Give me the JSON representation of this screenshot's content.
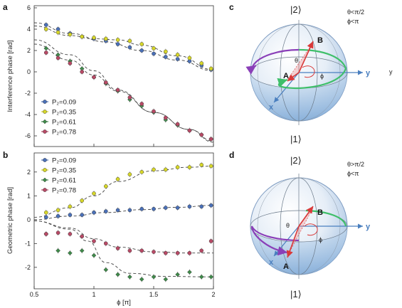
{
  "panels": {
    "a": "a",
    "b": "b",
    "c": "c",
    "d": "d"
  },
  "colors": {
    "s1": "#4a70b8",
    "s2": "#d6d62a",
    "s3": "#3f8a4a",
    "s4": "#b84a66",
    "dash": "#444444",
    "purple": "#8a3fb8",
    "green": "#3fbf6a",
    "red": "#d93a3a",
    "axis_blue": "#4a7fbf"
  },
  "chart_data": [
    {
      "type": "scatter",
      "id": "a",
      "xlabel": "",
      "ylabel": "Interference phase [rad]",
      "xlim": [
        0.5,
        2.0
      ],
      "ylim": [
        -7,
        6.2
      ],
      "xticks": [
        0.5,
        1,
        1.5,
        2
      ],
      "xticklabels": [
        "0.5",
        "1",
        "1.5",
        "2"
      ],
      "yticks": [
        6,
        4,
        2,
        0,
        -2,
        -4,
        -6
      ],
      "yticklabels": [
        "6",
        "4",
        "2",
        "0",
        "-2",
        "-4",
        "-6"
      ],
      "legend": "lower-left",
      "grid": false,
      "series": [
        {
          "name": "P₂=0.09",
          "color_key": "s1",
          "x": [
            0.6,
            0.7,
            0.8,
            0.9,
            1.0,
            1.1,
            1.2,
            1.3,
            1.4,
            1.5,
            1.6,
            1.7,
            1.8,
            1.9,
            1.98
          ],
          "y": [
            4.4,
            4.0,
            3.6,
            3.3,
            3.1,
            2.9,
            2.6,
            2.3,
            2.0,
            1.7,
            1.4,
            1.2,
            1.0,
            0.6,
            0.2
          ],
          "fit": [
            [
              0.5,
              4.6
            ],
            [
              0.8,
              3.6
            ],
            [
              1.1,
              2.8
            ],
            [
              1.4,
              2.0
            ],
            [
              1.7,
              1.1
            ],
            [
              2.0,
              0.1
            ]
          ]
        },
        {
          "name": "P₂=0.35",
          "color_key": "s2",
          "x": [
            0.6,
            0.7,
            0.8,
            0.9,
            1.0,
            1.1,
            1.2,
            1.3,
            1.4,
            1.5,
            1.6,
            1.7,
            1.8,
            1.9,
            1.98
          ],
          "y": [
            4.0,
            3.7,
            3.5,
            3.3,
            3.2,
            3.1,
            3.0,
            2.9,
            2.6,
            2.2,
            1.9,
            1.6,
            1.3,
            0.8,
            0.3
          ],
          "fit": [
            [
              0.5,
              4.3
            ],
            [
              0.8,
              3.4
            ],
            [
              1.0,
              3.1
            ],
            [
              1.2,
              3.0
            ],
            [
              1.4,
              2.5
            ],
            [
              1.7,
              1.5
            ],
            [
              2.0,
              0.2
            ]
          ]
        },
        {
          "name": "P₂=0.61",
          "color_key": "s3",
          "x": [
            0.6,
            0.7,
            0.8,
            0.9,
            1.0,
            1.1,
            1.2,
            1.3,
            1.4,
            1.5,
            1.6,
            1.7,
            1.8,
            1.9,
            1.98
          ],
          "y": [
            2.2,
            1.6,
            1.0,
            0.3,
            -0.5,
            -1.1,
            -1.8,
            -2.6,
            -3.2,
            -3.8,
            -4.5,
            -5.0,
            -5.5,
            -5.9,
            -6.3
          ],
          "fit": [
            [
              0.5,
              3.0
            ],
            [
              0.8,
              1.6
            ],
            [
              1.0,
              0.1
            ],
            [
              1.2,
              -1.7
            ],
            [
              1.5,
              -3.8
            ],
            [
              1.8,
              -5.4
            ],
            [
              2.0,
              -6.5
            ]
          ]
        },
        {
          "name": "P₂=0.78",
          "color_key": "s4",
          "x": [
            0.6,
            0.7,
            0.8,
            0.9,
            1.0,
            1.1,
            1.2,
            1.3,
            1.4,
            1.5,
            1.6,
            1.7,
            1.8,
            1.9,
            1.98
          ],
          "y": [
            1.8,
            1.3,
            0.8,
            0.0,
            -0.5,
            -1.0,
            -1.7,
            -2.4,
            -3.0,
            -3.7,
            -4.3,
            -4.9,
            -5.5,
            -5.9,
            -6.3
          ],
          "fit": [
            [
              0.5,
              2.6
            ],
            [
              0.8,
              1.1
            ],
            [
              1.0,
              -0.3
            ],
            [
              1.2,
              -1.8
            ],
            [
              1.5,
              -3.8
            ],
            [
              1.8,
              -5.4
            ],
            [
              2.0,
              -6.6
            ]
          ]
        }
      ]
    },
    {
      "type": "scatter",
      "id": "b",
      "xlabel": "ϕ [π]",
      "ylabel": "Geometric phase [rad]",
      "xlim": [
        0.5,
        2.0
      ],
      "ylim": [
        -2.9,
        2.8
      ],
      "xticks": [
        0.5,
        1,
        1.5,
        2
      ],
      "xticklabels": [
        "0.5",
        "1",
        "1.5",
        "2"
      ],
      "yticks": [
        2,
        1,
        0,
        -1,
        -2
      ],
      "yticklabels": [
        "2",
        "1",
        "0",
        "-1",
        "-2"
      ],
      "legend": "upper-left",
      "grid": false,
      "series": [
        {
          "name": "P₂=0.09",
          "color_key": "s1",
          "x": [
            0.6,
            0.7,
            0.8,
            0.9,
            1.0,
            1.1,
            1.2,
            1.3,
            1.4,
            1.5,
            1.6,
            1.7,
            1.8,
            1.9,
            1.98
          ],
          "y": [
            0.1,
            0.15,
            0.2,
            0.2,
            0.3,
            0.35,
            0.4,
            0.4,
            0.45,
            0.45,
            0.5,
            0.5,
            0.55,
            0.55,
            0.6
          ],
          "fit": [
            [
              0.5,
              0.0
            ],
            [
              0.8,
              0.15
            ],
            [
              1.1,
              0.3
            ],
            [
              1.4,
              0.42
            ],
            [
              1.7,
              0.52
            ],
            [
              2.0,
              0.6
            ]
          ]
        },
        {
          "name": "P₂=0.35",
          "color_key": "s2",
          "x": [
            0.6,
            0.7,
            0.8,
            0.9,
            1.0,
            1.1,
            1.2,
            1.3,
            1.4,
            1.5,
            1.6,
            1.7,
            1.8,
            1.9,
            1.98
          ],
          "y": [
            0.3,
            0.4,
            0.55,
            0.8,
            1.1,
            1.4,
            1.7,
            1.9,
            2.0,
            2.1,
            2.1,
            2.2,
            2.2,
            2.3,
            2.25
          ],
          "fit": [
            [
              0.5,
              0.1
            ],
            [
              0.8,
              0.5
            ],
            [
              1.0,
              1.0
            ],
            [
              1.2,
              1.6
            ],
            [
              1.5,
              2.05
            ],
            [
              1.8,
              2.2
            ],
            [
              2.0,
              2.25
            ]
          ]
        },
        {
          "name": "P₂=0.61",
          "color_key": "s3",
          "x": [
            0.6,
            0.7,
            0.8,
            0.9,
            1.0,
            1.1,
            1.2,
            1.3,
            1.4,
            1.5,
            1.6,
            1.7,
            1.8,
            1.9,
            1.98
          ],
          "y": [
            -0.6,
            -1.3,
            -1.4,
            -1.3,
            -1.5,
            -2.1,
            -2.3,
            -2.4,
            -2.5,
            -2.4,
            -2.5,
            -2.3,
            -2.2,
            -2.4,
            -2.4
          ],
          "fit": [
            [
              0.5,
              -0.05
            ],
            [
              0.8,
              -0.4
            ],
            [
              0.95,
              -0.9
            ],
            [
              1.1,
              -1.8
            ],
            [
              1.3,
              -2.25
            ],
            [
              1.6,
              -2.38
            ],
            [
              2.0,
              -2.4
            ]
          ]
        },
        {
          "name": "P₂=0.78",
          "color_key": "s4",
          "x": [
            0.6,
            0.7,
            0.8,
            0.9,
            1.0,
            1.1,
            1.2,
            1.3,
            1.4,
            1.5,
            1.6,
            1.7,
            1.8,
            1.9,
            1.98
          ],
          "y": [
            -0.6,
            -0.55,
            -0.6,
            -0.7,
            -0.9,
            -1.0,
            -1.2,
            -1.3,
            -1.3,
            -1.35,
            -1.4,
            -1.4,
            -1.4,
            -1.3,
            -0.9
          ],
          "fit": [
            [
              0.5,
              -0.05
            ],
            [
              0.8,
              -0.35
            ],
            [
              1.0,
              -0.8
            ],
            [
              1.2,
              -1.15
            ],
            [
              1.5,
              -1.35
            ],
            [
              1.8,
              -1.4
            ],
            [
              2.0,
              -1.4
            ]
          ]
        }
      ]
    }
  ],
  "spheres": {
    "c": {
      "top_ket": "|2⟩",
      "bottom_ket": "|1⟩",
      "note_line1": "θ<π/2",
      "note_line2": "ϕ<π",
      "label_A": "A",
      "label_B": "B",
      "label_theta": "θ",
      "label_phi": "ϕ",
      "axis_y": "y",
      "axis_x": "x",
      "stray_y": "y"
    },
    "d": {
      "top_ket": "|2⟩",
      "bottom_ket": "|1⟩",
      "note_line1": "θ>π/2",
      "note_line2": "ϕ<π",
      "label_A": "A",
      "label_B": "B",
      "label_theta": "θ",
      "label_phi": "ϕ",
      "axis_y": "y",
      "axis_x": "x"
    }
  }
}
